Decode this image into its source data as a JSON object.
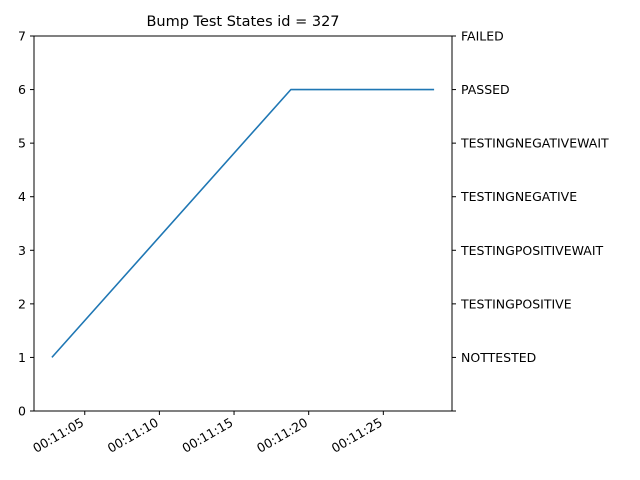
{
  "chart_data": {
    "type": "line",
    "title": "Bump Test States id = 327",
    "xlabel": "",
    "ylabel": "",
    "x_tick_labels": [
      "00:11:05",
      "00:11:10",
      "00:11:15",
      "00:11:20",
      "00:11:25"
    ],
    "x_tick_seconds": [
      5,
      10,
      15,
      20,
      25
    ],
    "xlim_seconds": [
      1.6,
      29.6
    ],
    "ylim": [
      0,
      7
    ],
    "y_ticks": [
      0,
      1,
      2,
      3,
      4,
      5,
      6,
      7
    ],
    "right_axis_labels": [
      {
        "value": 1,
        "label": "NOTTESTED"
      },
      {
        "value": 2,
        "label": "TESTINGPOSITIVE"
      },
      {
        "value": 3,
        "label": "TESTINGPOSITIVEWAIT"
      },
      {
        "value": 4,
        "label": "TESTINGNEGATIVE"
      },
      {
        "value": 5,
        "label": "TESTINGNEGATIVEWAIT"
      },
      {
        "value": 6,
        "label": "PASSED"
      },
      {
        "value": 7,
        "label": "FAILED"
      }
    ],
    "series": [
      {
        "color": "#1f77b4",
        "points": [
          {
            "t": "00:11:02.8",
            "s": 2.8,
            "y": 1
          },
          {
            "t": "00:11:18.8",
            "s": 18.8,
            "y": 6
          },
          {
            "t": "00:11:28.4",
            "s": 28.4,
            "y": 6
          }
        ]
      }
    ],
    "grid": false
  }
}
